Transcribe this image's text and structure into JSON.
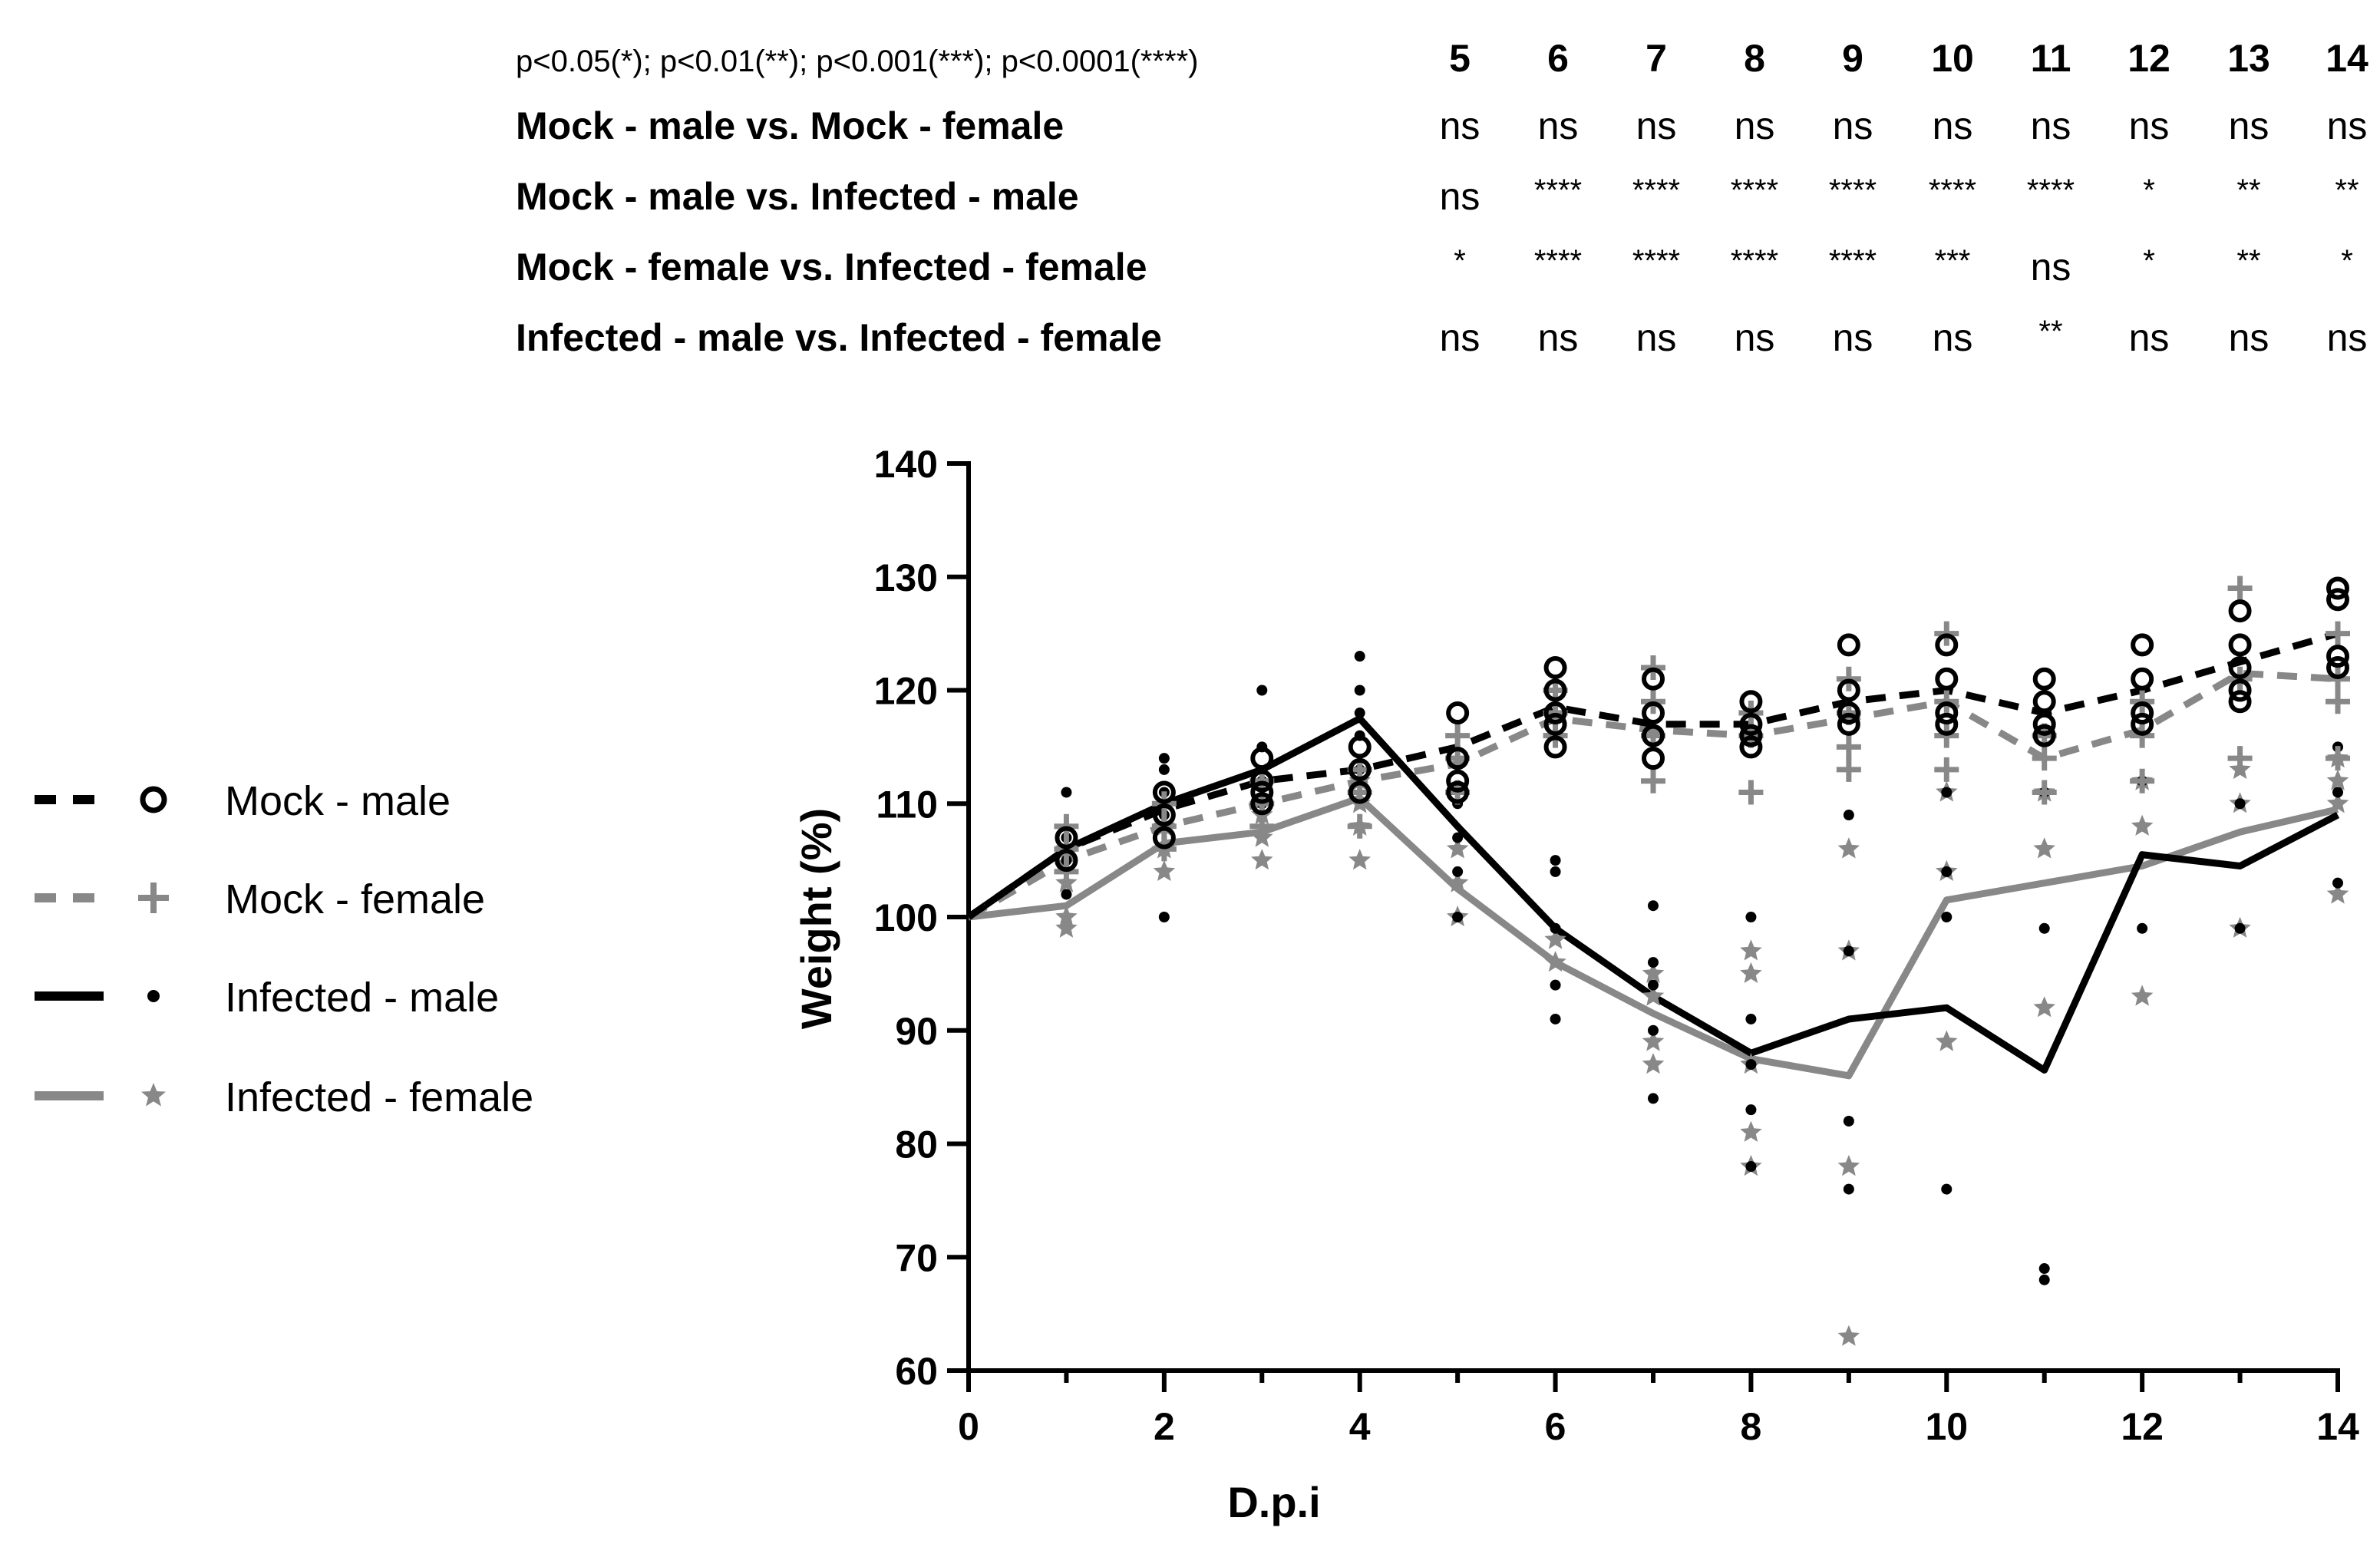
{
  "significance_table": {
    "legend": "p<0.05(*); p<0.01(**); p<0.001(***); p<0.0001(****)",
    "days": [
      "5",
      "6",
      "7",
      "8",
      "9",
      "10",
      "11",
      "12",
      "13",
      "14"
    ],
    "rows": [
      {
        "label": "Mock - male vs. Mock - female",
        "values": [
          "ns",
          "ns",
          "ns",
          "ns",
          "ns",
          "ns",
          "ns",
          "ns",
          "ns",
          "ns"
        ]
      },
      {
        "label": "Mock - male vs. Infected - male",
        "values": [
          "ns",
          "****",
          "****",
          "****",
          "****",
          "****",
          "****",
          "*",
          "**",
          "**"
        ]
      },
      {
        "label": "Mock - female vs. Infected - female",
        "values": [
          "*",
          "****",
          "****",
          "****",
          "****",
          "***",
          "ns",
          "*",
          "**",
          "*"
        ]
      },
      {
        "label": "Infected - male vs. Infected - female",
        "values": [
          "ns",
          "ns",
          "ns",
          "ns",
          "ns",
          "ns",
          "**",
          "ns",
          "ns",
          "ns"
        ]
      }
    ]
  },
  "chart_data": {
    "type": "line",
    "title": "",
    "xlabel": "D.p.i",
    "ylabel": "Weight (%)",
    "xlim": [
      0,
      14
    ],
    "ylim": [
      60,
      140
    ],
    "xticks": [
      0,
      2,
      4,
      6,
      8,
      10,
      12,
      14
    ],
    "yticks": [
      60,
      70,
      80,
      90,
      100,
      110,
      120,
      130,
      140
    ],
    "x": [
      0,
      1,
      2,
      3,
      4,
      5,
      6,
      7,
      8,
      9,
      10,
      11,
      12,
      13,
      14
    ],
    "legend_position": "left",
    "series": [
      {
        "name": "Mock - male",
        "line": "dashed",
        "color": "#000000",
        "marker": "circle",
        "values": [
          100,
          106,
          109.5,
          112,
          113,
          115,
          118.5,
          117,
          117,
          119,
          120,
          118,
          120,
          122.5,
          125
        ],
        "points": [
          [
            1,
            105
          ],
          [
            1,
            107
          ],
          [
            2,
            107
          ],
          [
            2,
            109
          ],
          [
            2,
            111
          ],
          [
            3,
            110
          ],
          [
            3,
            111
          ],
          [
            3,
            112
          ],
          [
            3,
            114
          ],
          [
            4,
            111
          ],
          [
            4,
            113
          ],
          [
            4,
            115
          ],
          [
            5,
            111
          ],
          [
            5,
            112
          ],
          [
            5,
            114
          ],
          [
            5,
            118
          ],
          [
            6,
            115
          ],
          [
            6,
            117
          ],
          [
            6,
            118
          ],
          [
            6,
            120
          ],
          [
            6,
            122
          ],
          [
            7,
            114
          ],
          [
            7,
            116
          ],
          [
            7,
            118
          ],
          [
            7,
            121
          ],
          [
            8,
            115
          ],
          [
            8,
            116
          ],
          [
            8,
            117
          ],
          [
            8,
            119
          ],
          [
            9,
            117
          ],
          [
            9,
            118
          ],
          [
            9,
            120
          ],
          [
            9,
            124
          ],
          [
            10,
            117
          ],
          [
            10,
            118
          ],
          [
            10,
            121
          ],
          [
            10,
            124
          ],
          [
            11,
            116
          ],
          [
            11,
            117
          ],
          [
            11,
            119
          ],
          [
            11,
            121
          ],
          [
            12,
            117
          ],
          [
            12,
            118
          ],
          [
            12,
            121
          ],
          [
            12,
            124
          ],
          [
            13,
            119
          ],
          [
            13,
            120
          ],
          [
            13,
            122
          ],
          [
            13,
            124
          ],
          [
            13,
            127
          ],
          [
            14,
            122
          ],
          [
            14,
            123
          ],
          [
            14,
            128
          ],
          [
            14,
            129
          ]
        ]
      },
      {
        "name": "Mock - female",
        "line": "dashed",
        "color": "#888888",
        "marker": "plus",
        "values": [
          100,
          105,
          108,
          110,
          112,
          113.5,
          117.5,
          116.5,
          116,
          117.5,
          119,
          114,
          116.5,
          121.5,
          121
        ],
        "points": [
          [
            1,
            104
          ],
          [
            1,
            106
          ],
          [
            1,
            108
          ],
          [
            2,
            106
          ],
          [
            2,
            108
          ],
          [
            2,
            110
          ],
          [
            3,
            108
          ],
          [
            3,
            110
          ],
          [
            3,
            112
          ],
          [
            4,
            108
          ],
          [
            4,
            111
          ],
          [
            4,
            113
          ],
          [
            5,
            111
          ],
          [
            5,
            114
          ],
          [
            5,
            116
          ],
          [
            6,
            116
          ],
          [
            6,
            118
          ],
          [
            6,
            120
          ],
          [
            7,
            112
          ],
          [
            7,
            116
          ],
          [
            7,
            119
          ],
          [
            7,
            122
          ],
          [
            8,
            111
          ],
          [
            8,
            116
          ],
          [
            8,
            118
          ],
          [
            9,
            113
          ],
          [
            9,
            115
          ],
          [
            9,
            118
          ],
          [
            9,
            121
          ],
          [
            10,
            113
          ],
          [
            10,
            116
          ],
          [
            10,
            119
          ],
          [
            10,
            125
          ],
          [
            11,
            111
          ],
          [
            11,
            114
          ],
          [
            11,
            116
          ],
          [
            12,
            112
          ],
          [
            12,
            116
          ],
          [
            12,
            119
          ],
          [
            13,
            114
          ],
          [
            13,
            121
          ],
          [
            13,
            129
          ],
          [
            14,
            114
          ],
          [
            14,
            119
          ],
          [
            14,
            121
          ],
          [
            14,
            125
          ]
        ]
      },
      {
        "name": "Infected - male",
        "line": "solid",
        "color": "#000000",
        "marker": "dot",
        "values": [
          100,
          106,
          110,
          113,
          117.5,
          108,
          99,
          93,
          88,
          91,
          92,
          86.5,
          105.5,
          104.5,
          109
        ],
        "points": [
          [
            1,
            102
          ],
          [
            1,
            105
          ],
          [
            1,
            107
          ],
          [
            1,
            111
          ],
          [
            2,
            100
          ],
          [
            2,
            109
          ],
          [
            2,
            111
          ],
          [
            2,
            113
          ],
          [
            2,
            114
          ],
          [
            3,
            110
          ],
          [
            3,
            112
          ],
          [
            3,
            115
          ],
          [
            3,
            120
          ],
          [
            4,
            113
          ],
          [
            4,
            116
          ],
          [
            4,
            118
          ],
          [
            4,
            120
          ],
          [
            4,
            123
          ],
          [
            5,
            100
          ],
          [
            5,
            104
          ],
          [
            5,
            107
          ],
          [
            5,
            110
          ],
          [
            6,
            91
          ],
          [
            6,
            94
          ],
          [
            6,
            99
          ],
          [
            6,
            104
          ],
          [
            6,
            105
          ],
          [
            7,
            84
          ],
          [
            7,
            90
          ],
          [
            7,
            94
          ],
          [
            7,
            96
          ],
          [
            7,
            101
          ],
          [
            8,
            78
          ],
          [
            8,
            83
          ],
          [
            8,
            87
          ],
          [
            8,
            91
          ],
          [
            8,
            100
          ],
          [
            9,
            76
          ],
          [
            9,
            82
          ],
          [
            9,
            97
          ],
          [
            9,
            109
          ],
          [
            10,
            76
          ],
          [
            10,
            100
          ],
          [
            10,
            104
          ],
          [
            10,
            111
          ],
          [
            11,
            68
          ],
          [
            11,
            69
          ],
          [
            11,
            99
          ],
          [
            11,
            111
          ],
          [
            12,
            99
          ],
          [
            12,
            112
          ],
          [
            13,
            99
          ],
          [
            13,
            110
          ],
          [
            14,
            103
          ],
          [
            14,
            111
          ],
          [
            14,
            115
          ]
        ]
      },
      {
        "name": "Infected - female",
        "line": "solid",
        "color": "#888888",
        "marker": "star",
        "values": [
          100,
          101,
          106.5,
          107.5,
          110.5,
          102.5,
          96,
          91.5,
          87.5,
          86,
          101.5,
          103,
          104.5,
          107.5,
          109.5
        ],
        "points": [
          [
            1,
            99
          ],
          [
            1,
            100
          ],
          [
            1,
            103
          ],
          [
            1,
            106
          ],
          [
            2,
            104
          ],
          [
            2,
            106
          ],
          [
            2,
            108
          ],
          [
            3,
            105
          ],
          [
            3,
            107
          ],
          [
            3,
            109
          ],
          [
            4,
            105
          ],
          [
            4,
            108
          ],
          [
            4,
            110
          ],
          [
            4,
            112
          ],
          [
            5,
            100
          ],
          [
            5,
            103
          ],
          [
            5,
            106
          ],
          [
            6,
            96
          ],
          [
            6,
            98
          ],
          [
            7,
            87
          ],
          [
            7,
            89
          ],
          [
            7,
            93
          ],
          [
            7,
            95
          ],
          [
            8,
            78
          ],
          [
            8,
            81
          ],
          [
            8,
            87
          ],
          [
            8,
            95
          ],
          [
            8,
            97
          ],
          [
            9,
            63
          ],
          [
            9,
            78
          ],
          [
            9,
            97
          ],
          [
            9,
            106
          ],
          [
            10,
            89
          ],
          [
            10,
            104
          ],
          [
            10,
            111
          ],
          [
            11,
            92
          ],
          [
            11,
            106
          ],
          [
            11,
            111
          ],
          [
            12,
            93
          ],
          [
            12,
            108
          ],
          [
            12,
            112
          ],
          [
            13,
            99
          ],
          [
            13,
            110
          ],
          [
            13,
            113
          ],
          [
            14,
            102
          ],
          [
            14,
            110
          ],
          [
            14,
            112
          ],
          [
            14,
            114
          ]
        ]
      }
    ]
  }
}
